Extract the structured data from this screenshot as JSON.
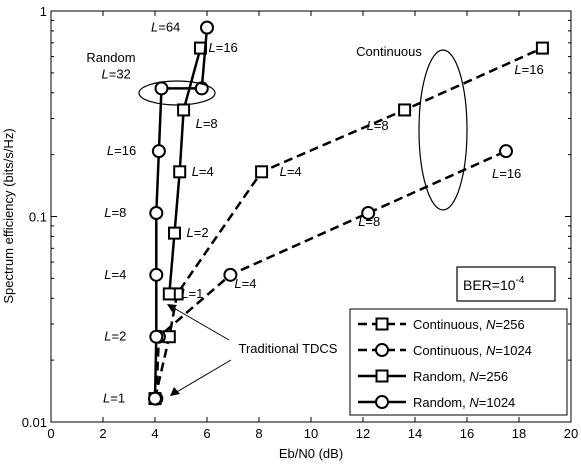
{
  "chart_data": {
    "type": "line",
    "xlabel": "Eb/N0 (dB)",
    "ylabel": "Spectrum efficiency (bits/s/Hz)",
    "xlim": [
      0,
      20
    ],
    "ylim": [
      0.01,
      1
    ],
    "yscale": "log",
    "grid": false,
    "legend_position": "bottom-right",
    "x_ticks": [
      "0",
      "2",
      "4",
      "6",
      "8",
      "10",
      "12",
      "14",
      "16",
      "18",
      "20"
    ],
    "y_ticks": [
      "0.01",
      "0.1",
      "1"
    ],
    "series": [
      {
        "name": "Continuous, N=256",
        "name_prefix": "Continuous, ",
        "name_var": "N",
        "name_suffix": "=256",
        "marker": "square",
        "dash": "dashed",
        "x": [
          4.0,
          4.55,
          4.85,
          8.1,
          13.6,
          18.9
        ],
        "y": [
          0.013,
          0.026,
          0.042,
          0.165,
          0.33,
          0.66
        ],
        "labels": [
          "",
          "",
          "",
          "4",
          "8",
          "16"
        ],
        "label_offsets": [
          [
            0,
            0
          ],
          [
            0,
            0
          ],
          [
            0,
            0
          ],
          [
            18,
            4
          ],
          [
            -38,
            20
          ],
          [
            -28,
            26
          ]
        ]
      },
      {
        "name": "Continuous, N=1024",
        "name_prefix": "Continuous, ",
        "name_var": "N",
        "name_suffix": "=1024",
        "marker": "circle",
        "dash": "dashed",
        "x": [
          4.05,
          4.15,
          6.9,
          12.2,
          17.5
        ],
        "y": [
          0.013,
          0.026,
          0.052,
          0.104,
          0.208
        ],
        "labels": [
          "",
          "",
          "4",
          "8",
          "16"
        ],
        "label_offsets": [
          [
            0,
            0
          ],
          [
            0,
            0
          ],
          [
            4,
            13
          ],
          [
            -10,
            13
          ],
          [
            -14,
            27
          ]
        ]
      },
      {
        "name": "Random, N=256",
        "name_prefix": "Random, ",
        "name_var": "N",
        "name_suffix": "=256",
        "marker": "square",
        "dash": "solid",
        "x": [
          4.55,
          4.75,
          4.95,
          5.1,
          5.75
        ],
        "y": [
          0.042,
          0.083,
          0.165,
          0.33,
          0.66
        ],
        "labels": [
          "1",
          "2",
          "4",
          "8",
          "16"
        ],
        "label_offsets": [
          [
            12,
            4
          ],
          [
            12,
            4
          ],
          [
            12,
            4
          ],
          [
            12,
            18
          ],
          [
            8,
            4
          ]
        ]
      },
      {
        "name": "Random, N=1024",
        "name_prefix": "Random, ",
        "name_var": "N",
        "name_suffix": "=1024",
        "marker": "circle",
        "dash": "solid",
        "x": [
          4.0,
          4.05,
          4.05,
          4.05,
          4.15,
          4.25,
          5.8,
          6.0
        ],
        "y": [
          0.013,
          0.026,
          0.052,
          0.104,
          0.208,
          0.42,
          0.42,
          0.83
        ],
        "labels": [
          "1",
          "2",
          "4",
          "8",
          "16",
          "32",
          "",
          "64"
        ],
        "label_offsets": [
          [
            -52,
            4
          ],
          [
            -52,
            4
          ],
          [
            -52,
            4
          ],
          [
            -52,
            4
          ],
          [
            -52,
            4
          ],
          [
            -60,
            -10
          ],
          [
            0,
            0
          ],
          [
            -56,
            4
          ]
        ]
      }
    ],
    "label_prefix": "L",
    "annotations": {
      "random": "Random",
      "continuous": "Continuous",
      "traditional": "Traditional TDCS",
      "ber_base": "BER=10",
      "ber_exp": "-4"
    }
  }
}
